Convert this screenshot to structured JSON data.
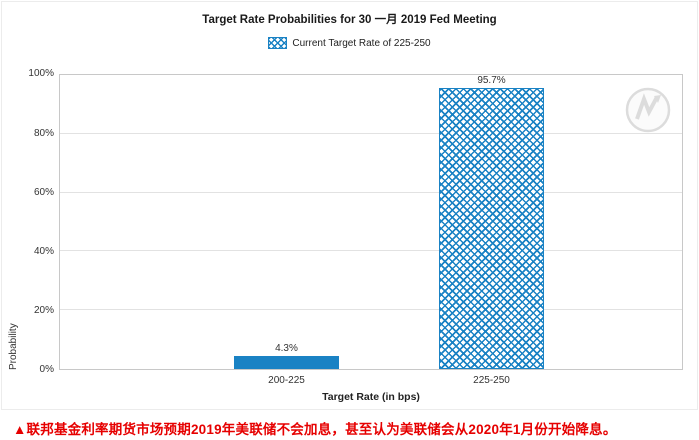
{
  "chart": {
    "title": "Target Rate Probabilities for 30 一月 2019 Fed Meeting",
    "legend_label": "Current Target Rate of 225-250",
    "y_axis_label": "Probability",
    "x_axis_label": "Target Rate (in bps)",
    "y_ticks": [
      "100%",
      "80%",
      "60%",
      "40%",
      "20%",
      "0%"
    ]
  },
  "chart_data": {
    "type": "bar",
    "title": "Target Rate Probabilities for 30 一月 2019 Fed Meeting",
    "categories": [
      "200-225",
      "225-250"
    ],
    "values": [
      4.3,
      95.7
    ],
    "data_labels": [
      "4.3%",
      "95.7%"
    ],
    "bar_styles": [
      "solid",
      "crosshatch"
    ],
    "xlabel": "Target Rate (in bps)",
    "ylabel": "Probability",
    "ylim": [
      0,
      100
    ],
    "y_tick_step": 20,
    "grid": true,
    "legend": {
      "position": "top",
      "entries": [
        "Current Target Rate of 225-250"
      ]
    }
  },
  "caption": "▲联邦基金利率期货市场预期2019年美联储不会加息，甚至认为美联储会从2020年1月份开始降息。",
  "colors": {
    "bar_blue": "#1a82c4",
    "caption_red": "#e60000",
    "grid": "#e2e2e2",
    "axis": "#c8c8c8"
  }
}
